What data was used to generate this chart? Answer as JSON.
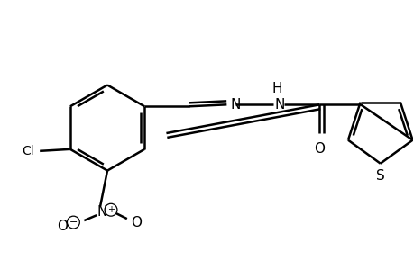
{
  "background_color": "#ffffff",
  "line_color": "#000000",
  "bond_lw": 1.8,
  "figure_width": 4.6,
  "figure_height": 3.0,
  "dpi": 100,
  "font_size": 10,
  "xlim": [
    0,
    460
  ],
  "ylim": [
    0,
    300
  ]
}
